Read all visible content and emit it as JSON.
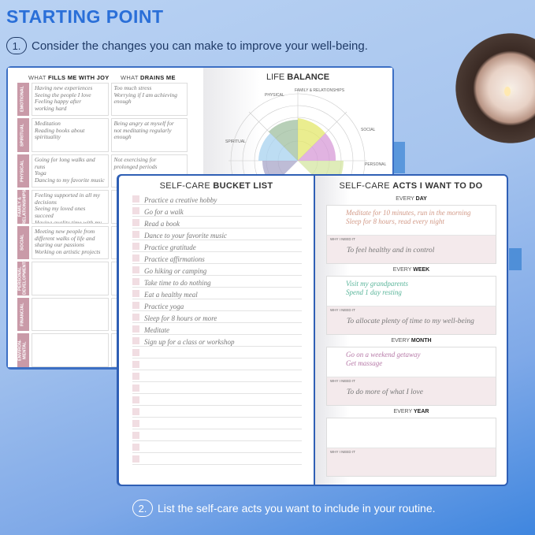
{
  "header": {
    "title": "STARTING POINT",
    "step1_num": "1.",
    "step1": "Consider the changes you can make to improve your well-being.",
    "step2_num": "2.",
    "step2": "List the self-care acts you want to include in your routine."
  },
  "colors": {
    "title": "#2a6fd8",
    "category_label": "#c99aa8",
    "background": "#a6c4ee"
  },
  "reflection": {
    "col1_a": "WHAT ",
    "col1_b": "FILLS ME WITH JOY",
    "col2_a": "WHAT ",
    "col2_b": "DRAINS ME",
    "rows": [
      {
        "label": "EMOTIONAL",
        "joy": "Having new experiences\nSeeing the people I love\nFeeling happy after\nworking hard",
        "drains": "Too much stress\nWorrying if I am achieving\nenough"
      },
      {
        "label": "SPIRITUAL",
        "joy": "Meditation\nReading books about\nspirituality",
        "drains": "Being angry at myself for\nnot meditating regularly\nenough"
      },
      {
        "label": "PHYSICAL",
        "joy": "Going for long walks and\nruns\nYoga\nDancing to my favorite music",
        "drains": "Not exercising for\nprolonged periods"
      },
      {
        "label": "FAMILY & RELATIONSHIPS",
        "joy": "Feeling supported in all my\ndecisions\nSeeing my loved ones succeed\nHaving quality time with my\nfamily",
        "drains": ""
      },
      {
        "label": "SOCIAL",
        "joy": "Meeting new people from\ndifferent walks of life and\nsharing our passions\nWorking on artistic projects",
        "drains": ""
      },
      {
        "label": "PERSONAL DEVELOPMENT",
        "joy": "",
        "drains": ""
      },
      {
        "label": "FINANCIAL",
        "joy": "",
        "drains": ""
      },
      {
        "label": "ENVIRON-MENTAL",
        "joy": "",
        "drains": ""
      }
    ]
  },
  "life_balance": {
    "title_a": "LIFE ",
    "title_b": "BALANCE",
    "axes": [
      "PHYSICAL",
      "FAMILY & RELATIONSHIPS",
      "SOCIAL",
      "SPIRITUAL",
      "PERSONAL"
    ]
  },
  "bucket_list": {
    "title_a": "SELF-CARE ",
    "title_b": "BUCKET LIST",
    "items": [
      "Practice a creative hobby",
      "Go for a walk",
      "Read a book",
      "Dance to your favorite music",
      "Practice gratitude",
      "Practice affirmations",
      "Go hiking or camping",
      "Take time to do nothing",
      "Eat a healthy meal",
      "Practice yoga",
      "Sleep for 8 hours or more",
      "Meditate",
      "Sign up for a class or workshop",
      "",
      "",
      "",
      "",
      "",
      "",
      "",
      "",
      "",
      ""
    ]
  },
  "acts": {
    "title_a": "SELF-CARE ",
    "title_b": "ACTS I WANT TO DO",
    "why_label": "WHY I NEED IT",
    "sections": [
      {
        "freq_a": "EVERY ",
        "freq_b": "DAY",
        "text": "Meditate for 10 minutes, run in the morning\nSleep for 8 hours, read every night",
        "why": "To feel healthy and in control",
        "color": "#d29a88"
      },
      {
        "freq_a": "EVERY ",
        "freq_b": "WEEK",
        "text": "Visit my grandparents\nSpend 1 day resting",
        "why": "To allocate plenty of time to my well-being",
        "color": "#5ab59a"
      },
      {
        "freq_a": "EVERY ",
        "freq_b": "MONTH",
        "text": "Go on a weekend getaway\nGet massage",
        "why": "To do more of what I love",
        "color": "#b77aa8"
      },
      {
        "freq_a": "EVERY ",
        "freq_b": "YEAR",
        "text": "",
        "why": "",
        "color": "#777777"
      }
    ]
  }
}
